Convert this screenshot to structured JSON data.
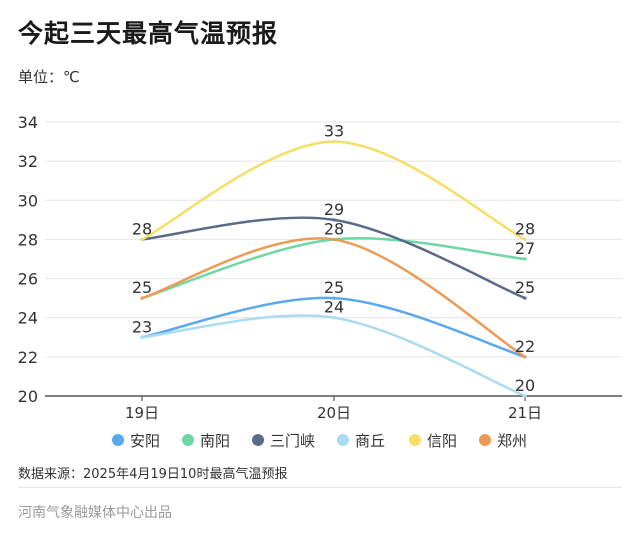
{
  "header": {
    "title": "今起三天最高气温预报",
    "unit_label": "单位：℃"
  },
  "source_note": "数据来源：2025年4月19日10时最高气温预报",
  "footer_credit": "河南气象融媒体中心出品",
  "chart_data": {
    "type": "line",
    "title": "今起三天最高气温预报",
    "ylabel": "单位：℃",
    "categories": [
      "19日",
      "20日",
      "21日"
    ],
    "ylim": [
      20,
      34
    ],
    "yticks": [
      20,
      22,
      24,
      26,
      28,
      30,
      32,
      34
    ],
    "grid": true,
    "legend_position": "bottom",
    "smooth": true,
    "series": [
      {
        "name": "安阳",
        "color": "#5aa9ee",
        "values": [
          23,
          25,
          22
        ],
        "labels": [
          "23",
          "25",
          "22"
        ]
      },
      {
        "name": "南阳",
        "color": "#6fd6a6",
        "values": [
          25,
          28,
          27
        ],
        "labels": [
          "",
          "",
          "27"
        ]
      },
      {
        "name": "三门峡",
        "color": "#5a6b8a",
        "values": [
          28,
          29,
          25
        ],
        "labels": [
          "",
          "29",
          "25"
        ]
      },
      {
        "name": "商丘",
        "color": "#a9dcf2",
        "values": [
          23,
          24,
          20
        ],
        "labels": [
          "",
          "24",
          "20"
        ]
      },
      {
        "name": "信阳",
        "color": "#f5de63",
        "values": [
          28,
          33,
          28
        ],
        "labels": [
          "28",
          "33",
          "28"
        ]
      },
      {
        "name": "郑州",
        "color": "#ee9a55",
        "values": [
          25,
          28,
          22
        ],
        "labels": [
          "25",
          "28",
          ""
        ]
      }
    ]
  }
}
